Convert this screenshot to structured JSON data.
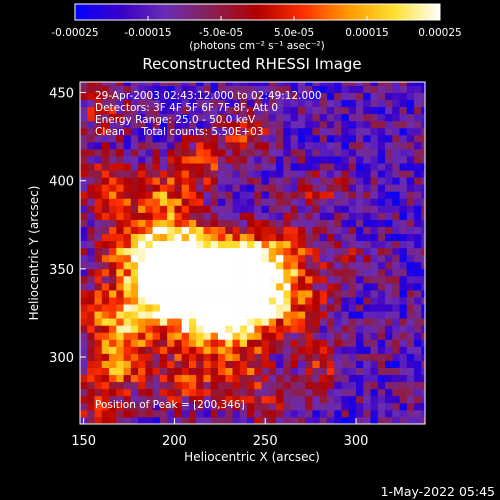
{
  "colorbar": {
    "tick_labels": [
      "-0.00025",
      "-0.00015",
      "-5.0e-05",
      "5.0e-05",
      "0.00015",
      "0.00025"
    ],
    "tick_values": [
      -0.00025,
      -0.00015,
      -5e-05,
      5e-05,
      0.00015,
      0.00025
    ],
    "range": [
      -0.00025,
      0.00025
    ],
    "unit_label": "(photons cm⁻² s⁻¹ asec⁻²)",
    "colors": [
      "#0000ff",
      "#3a00c8",
      "#6a2cb4",
      "#8a2050",
      "#b00000",
      "#ff3000",
      "#ff9a00",
      "#ffe030",
      "#ffffff"
    ]
  },
  "chart_data": {
    "type": "heatmap",
    "title": "Reconstructed RHESSI Image",
    "xlabel": "Heliocentric X (arcsec)",
    "ylabel": "Heliocentric Y (arcsec)",
    "xlim": [
      148,
      338
    ],
    "ylim": [
      262,
      456
    ],
    "x_ticks": [
      150,
      200,
      250,
      300
    ],
    "y_ticks": [
      300,
      350,
      400,
      450
    ],
    "peak": [
      200,
      346
    ],
    "total_counts": "5.50E+03"
  },
  "annotations": {
    "time_range": "29-Apr-2003 02:43:12.000 to 02:49:12.000",
    "detectors": "Detectors: 3F 4F 5F 6F 7F 8F, Att 0",
    "energy": "Energy Range: 25.0 - 50.0 keV",
    "clean_counts": "Clean     Total counts: 5.50E+03",
    "peak_label": "Position of Peak = [200,346]"
  },
  "timestamp": "1-May-2022 05:45"
}
